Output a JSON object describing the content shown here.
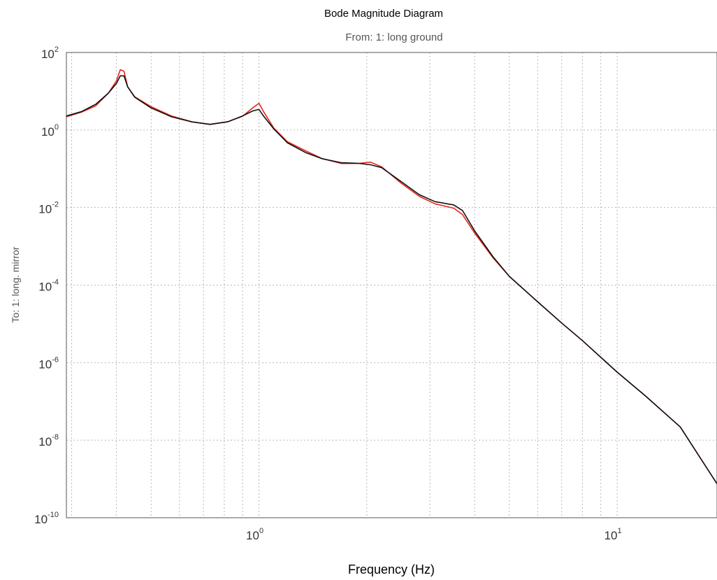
{
  "chart_data": {
    "type": "line",
    "title": "Bode Magnitude Diagram",
    "subtitle": "From: 1: long ground",
    "xlabel": "Frequency (Hz)",
    "ylabel": "To: 1: long. mirror",
    "xscale": "log",
    "yscale": "log",
    "xlim": [
      0.29,
      19.0
    ],
    "ylim": [
      1e-10,
      100
    ],
    "grid": true,
    "x_ticks": [
      {
        "value": 1,
        "base": "10",
        "exp": "0"
      },
      {
        "value": 10,
        "base": "10",
        "exp": "1"
      }
    ],
    "y_ticks": [
      {
        "value": 100,
        "base": "10",
        "exp": "2"
      },
      {
        "value": 1,
        "base": "10",
        "exp": "0"
      },
      {
        "value": 0.01,
        "base": "10",
        "exp": "-2"
      },
      {
        "value": 0.0001,
        "base": "10",
        "exp": "-4"
      },
      {
        "value": 1e-06,
        "base": "10",
        "exp": "-6"
      },
      {
        "value": 1e-08,
        "base": "10",
        "exp": "-8"
      },
      {
        "value": 1e-10,
        "base": "10",
        "exp": "-10"
      }
    ],
    "series": [
      {
        "color": "#e8261c",
        "points": [
          [
            0.29,
            2.2
          ],
          [
            0.32,
            2.9
          ],
          [
            0.35,
            4.2
          ],
          [
            0.38,
            9.0
          ],
          [
            0.4,
            18.6
          ],
          [
            0.41,
            36.0
          ],
          [
            0.42,
            32.8
          ],
          [
            0.43,
            13.0
          ],
          [
            0.45,
            7.2
          ],
          [
            0.5,
            4.0
          ],
          [
            0.57,
            2.3
          ],
          [
            0.65,
            1.62
          ],
          [
            0.73,
            1.39
          ],
          [
            0.82,
            1.64
          ],
          [
            0.9,
            2.27
          ],
          [
            0.96,
            3.7
          ],
          [
            1.0,
            4.9
          ],
          [
            1.03,
            3.0
          ],
          [
            1.1,
            1.12
          ],
          [
            1.2,
            0.5
          ],
          [
            1.35,
            0.29
          ],
          [
            1.5,
            0.184
          ],
          [
            1.7,
            0.137
          ],
          [
            1.9,
            0.138
          ],
          [
            2.05,
            0.148
          ],
          [
            2.2,
            0.112
          ],
          [
            2.5,
            0.042
          ],
          [
            2.8,
            0.0196
          ],
          [
            3.1,
            0.0125
          ],
          [
            3.5,
            0.0096
          ],
          [
            3.7,
            0.0066
          ],
          [
            4.0,
            0.0022
          ],
          [
            4.5,
            0.00051
          ],
          [
            5.0,
            0.000168
          ],
          [
            6.0,
            3.7e-05
          ],
          [
            7.0,
            1.05e-05
          ],
          [
            8.0,
            3.7e-06
          ],
          [
            10.0,
            5.7e-07
          ],
          [
            12.0,
            1.38e-07
          ],
          [
            15.0,
            2.2e-08
          ],
          [
            19.0,
            7.5e-10
          ]
        ]
      },
      {
        "color": "#111111",
        "points": [
          [
            0.29,
            2.3
          ],
          [
            0.32,
            3.0
          ],
          [
            0.35,
            4.6
          ],
          [
            0.38,
            9.0
          ],
          [
            0.4,
            15.9
          ],
          [
            0.41,
            25.0
          ],
          [
            0.42,
            25.0
          ],
          [
            0.43,
            13.0
          ],
          [
            0.45,
            7.0
          ],
          [
            0.5,
            3.7
          ],
          [
            0.57,
            2.2
          ],
          [
            0.65,
            1.62
          ],
          [
            0.73,
            1.4
          ],
          [
            0.82,
            1.64
          ],
          [
            0.9,
            2.31
          ],
          [
            0.96,
            3.1
          ],
          [
            1.0,
            3.4
          ],
          [
            1.03,
            2.3
          ],
          [
            1.1,
            1.07
          ],
          [
            1.2,
            0.47
          ],
          [
            1.35,
            0.262
          ],
          [
            1.5,
            0.182
          ],
          [
            1.7,
            0.143
          ],
          [
            1.9,
            0.138
          ],
          [
            2.05,
            0.127
          ],
          [
            2.2,
            0.107
          ],
          [
            2.5,
            0.046
          ],
          [
            2.8,
            0.0216
          ],
          [
            3.1,
            0.0142
          ],
          [
            3.5,
            0.0117
          ],
          [
            3.7,
            0.0084
          ],
          [
            4.0,
            0.0025
          ],
          [
            4.5,
            0.00054
          ],
          [
            5.0,
            0.000168
          ],
          [
            6.0,
            3.7e-05
          ],
          [
            7.0,
            1.05e-05
          ],
          [
            8.0,
            3.7e-06
          ],
          [
            10.0,
            5.7e-07
          ],
          [
            12.0,
            1.38e-07
          ],
          [
            15.0,
            2.2e-08
          ],
          [
            19.0,
            7.5e-10
          ]
        ]
      }
    ]
  }
}
